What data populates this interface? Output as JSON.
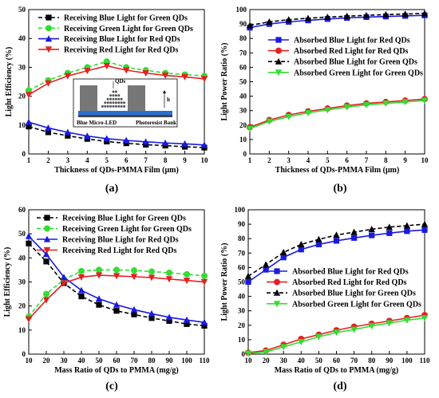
{
  "chart_data": [
    {
      "panel_label": "(a)",
      "type": "line",
      "xlabel": "Thickness of QDs-PMMA Film  (μm)",
      "ylabel": "Light Efficiency (%)",
      "xlim": [
        1,
        10
      ],
      "ylim": [
        0,
        50
      ],
      "xticks": [
        1,
        2,
        3,
        4,
        5,
        6,
        7,
        8,
        9,
        10
      ],
      "yticks": [
        0,
        10,
        20,
        30,
        40,
        50
      ],
      "grid": false,
      "legend_position": "top-left",
      "x": [
        1,
        2,
        3,
        4,
        5,
        6,
        7,
        8,
        9,
        10
      ],
      "series": [
        {
          "name": "Receiving Blue Light for Green QDs",
          "color": "#000000",
          "marker": "square",
          "dash": true,
          "values": [
            9.5,
            7.5,
            6.3,
            5.2,
            4.3,
            3.7,
            3.2,
            2.9,
            2.5,
            2.2
          ]
        },
        {
          "name": "Receiving Green Light for Green QDs",
          "color": "#33dd33",
          "marker": "circle",
          "dash": true,
          "values": [
            22.0,
            25.5,
            28.0,
            30.0,
            32.0,
            30.0,
            29.0,
            28.0,
            27.5,
            27.0
          ]
        },
        {
          "name": "Receiving Blue Light for Red QDs",
          "color": "#1a1adf",
          "marker": "triangle-up",
          "dash": false,
          "values": [
            11.0,
            9.0,
            7.5,
            6.2,
            5.3,
            4.7,
            4.2,
            3.8,
            3.5,
            3.1
          ]
        },
        {
          "name": "Receiving Red Light for Red  QDs",
          "color": "#e62020",
          "marker": "triangle-down",
          "dash": false,
          "values": [
            20.5,
            24.5,
            27.0,
            28.8,
            30.5,
            29.0,
            28.0,
            27.2,
            26.7,
            26.0
          ]
        }
      ],
      "inset": {
        "qds_label": "QDs",
        "h_label": "h",
        "led_label": "Blue Micro-LED",
        "bank_label": "Photoresist Bank"
      }
    },
    {
      "panel_label": "(b)",
      "type": "line",
      "xlabel": "Thickness of QDs-PMMA Film  (μm)",
      "ylabel": "Light Power Ratio (%)",
      "xlim": [
        1,
        10
      ],
      "ylim": [
        0,
        100
      ],
      "xticks": [
        1,
        2,
        3,
        4,
        5,
        6,
        7,
        8,
        9,
        10
      ],
      "yticks": [
        0,
        10,
        20,
        30,
        40,
        50,
        60,
        70,
        80,
        90,
        100
      ],
      "grid": false,
      "legend_position": "center-right",
      "x": [
        1,
        2,
        3,
        4,
        5,
        6,
        7,
        8,
        9,
        10
      ],
      "series": [
        {
          "name": "Absorbed Blue Light for Red QDs",
          "color": "#1a1adf",
          "marker": "square",
          "dash": false,
          "values": [
            87.5,
            90.0,
            91.5,
            92.5,
            93.5,
            94.2,
            94.8,
            95.2,
            95.6,
            96.0
          ]
        },
        {
          "name": "Absorbed Red Light for Red QDs",
          "color": "#e62020",
          "marker": "circle",
          "dash": false,
          "values": [
            18.5,
            23.5,
            27.0,
            29.5,
            31.5,
            33.5,
            35.0,
            36.0,
            37.0,
            38.0
          ]
        },
        {
          "name": "Absorbed Blue Light for Green QDs",
          "color": "#000000",
          "marker": "triangle-up",
          "dash": true,
          "values": [
            89.0,
            91.5,
            93.0,
            94.0,
            94.8,
            95.4,
            96.0,
            96.5,
            96.9,
            97.3
          ]
        },
        {
          "name": "Absorbed Green Light for Green QDs",
          "color": "#33dd33",
          "marker": "triangle-down",
          "dash": false,
          "values": [
            17.5,
            22.5,
            25.8,
            28.5,
            30.5,
            32.5,
            34.0,
            35.0,
            36.0,
            37.0
          ]
        }
      ]
    },
    {
      "panel_label": "(c)",
      "type": "line",
      "xlabel": "Mass Ratio of QDs to PMMA  (mg/g)",
      "ylabel": "Light Efficiency (%)",
      "xlim": [
        10,
        110
      ],
      "ylim": [
        0,
        60
      ],
      "xticks": [
        10,
        20,
        30,
        40,
        50,
        60,
        70,
        80,
        90,
        100,
        110
      ],
      "yticks": [
        0,
        10,
        20,
        30,
        40,
        50,
        60
      ],
      "grid": false,
      "legend_position": "top-right",
      "x": [
        10,
        20,
        30,
        40,
        50,
        60,
        70,
        80,
        90,
        100,
        110
      ],
      "series": [
        {
          "name": "Receiving Blue Light for Green QDs",
          "color": "#000000",
          "marker": "square",
          "dash": true,
          "values": [
            46.0,
            38.5,
            29.5,
            24.0,
            20.5,
            18.0,
            16.5,
            15.0,
            13.8,
            12.5,
            11.8
          ]
        },
        {
          "name": "Receiving Green Light for Green QDs",
          "color": "#33dd33",
          "marker": "circle",
          "dash": true,
          "values": [
            15.5,
            25.0,
            31.0,
            34.5,
            35.0,
            35.0,
            34.8,
            34.3,
            33.8,
            33.2,
            32.5
          ]
        },
        {
          "name": "Receiving Blue Light for Red QDs",
          "color": "#1a1adf",
          "marker": "triangle-up",
          "dash": false,
          "values": [
            49.0,
            41.5,
            32.0,
            26.5,
            23.0,
            20.5,
            18.5,
            16.8,
            15.3,
            14.2,
            13.2
          ]
        },
        {
          "name": "Receiving Red Light for Red QDs",
          "color": "#e62020",
          "marker": "triangle-down",
          "dash": false,
          "values": [
            14.5,
            22.5,
            29.5,
            32.0,
            32.8,
            32.5,
            32.2,
            31.8,
            31.2,
            30.6,
            30.0
          ]
        }
      ]
    },
    {
      "panel_label": "(d)",
      "type": "line",
      "xlabel": "Mass Ratio of QDs to PMMA  (mg/g)",
      "ylabel": "Light Power Ratio (%)",
      "xlim": [
        10,
        110
      ],
      "ylim": [
        0,
        100
      ],
      "xticks": [
        10,
        20,
        30,
        40,
        50,
        60,
        70,
        80,
        90,
        100,
        110
      ],
      "yticks": [
        0,
        10,
        20,
        30,
        40,
        50,
        60,
        70,
        80,
        90,
        100
      ],
      "grid": false,
      "legend_position": "center-right",
      "x": [
        10,
        20,
        30,
        40,
        50,
        60,
        70,
        80,
        90,
        100,
        110
      ],
      "series": [
        {
          "name": "Absorbed Blue Light for Red QDs",
          "color": "#1a1adf",
          "marker": "square",
          "dash": false,
          "values": [
            50.0,
            58.5,
            67.0,
            72.5,
            76.0,
            78.5,
            80.5,
            82.3,
            83.8,
            85.2,
            86.0
          ]
        },
        {
          "name": "Absorbed Red Light for Red QDs",
          "color": "#e62020",
          "marker": "circle",
          "dash": false,
          "values": [
            1.0,
            2.5,
            6.5,
            10.5,
            13.5,
            16.5,
            19.0,
            21.0,
            23.0,
            25.0,
            27.0
          ]
        },
        {
          "name": "Absorbed Blue Light for Green QDs",
          "color": "#000000",
          "marker": "triangle-up",
          "dash": true,
          "values": [
            54.0,
            62.0,
            70.5,
            76.0,
            79.5,
            82.5,
            84.5,
            86.5,
            88.0,
            89.0,
            90.0
          ]
        },
        {
          "name": "Absorbed Green Light for Green  QDs",
          "color": "#33dd33",
          "marker": "triangle-down",
          "dash": false,
          "values": [
            0.5,
            1.5,
            5.0,
            8.5,
            12.0,
            15.0,
            17.0,
            19.5,
            21.5,
            23.5,
            25.0
          ]
        }
      ]
    }
  ]
}
